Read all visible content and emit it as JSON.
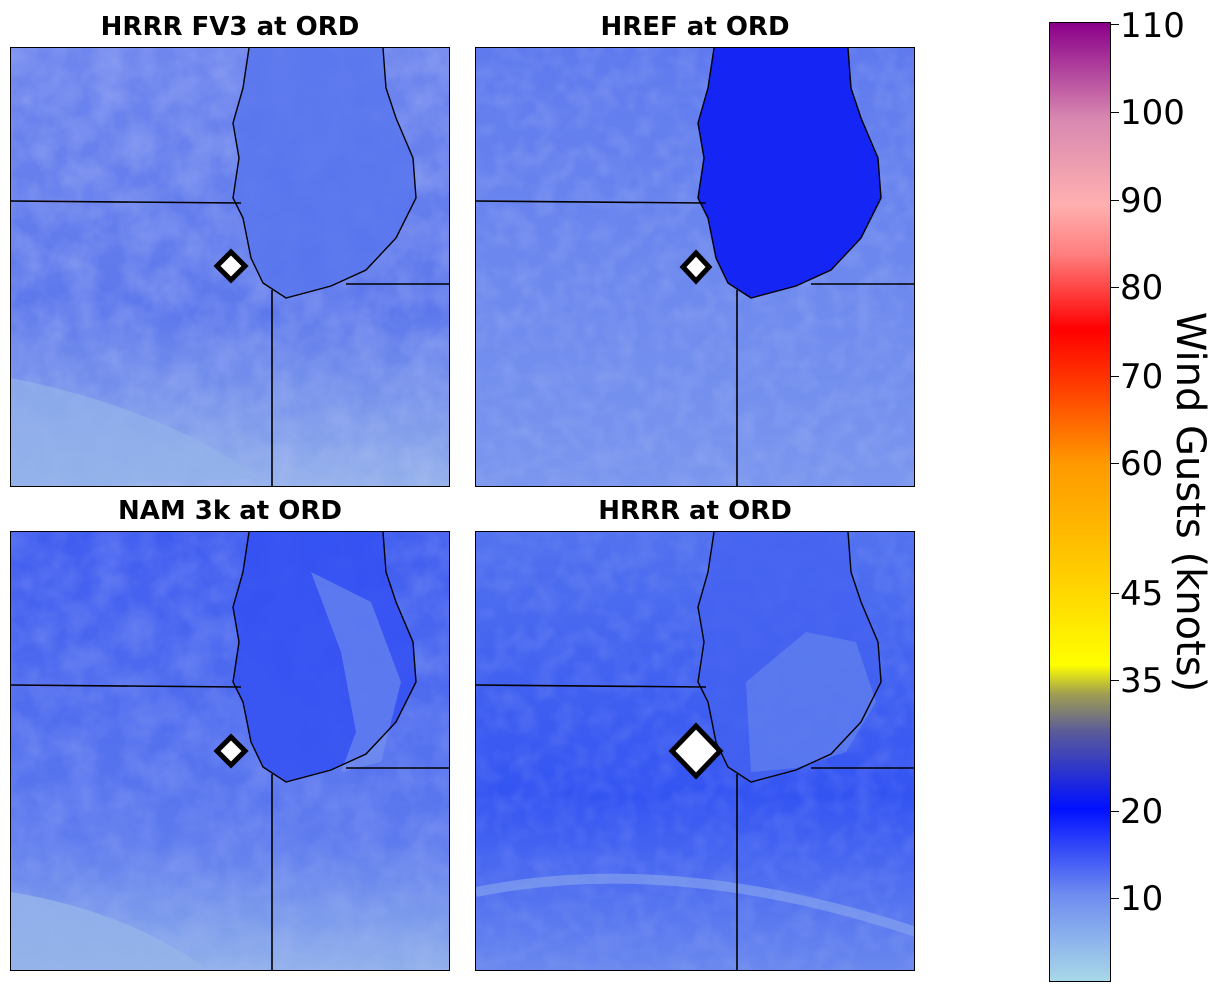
{
  "panels": [
    {
      "title": "HRRR FV3 at ORD"
    },
    {
      "title": "HREF at ORD"
    },
    {
      "title": "NAM 3k at ORD"
    },
    {
      "title": "HRRR at ORD"
    }
  ],
  "station_marker": "diamond-marker-icon",
  "colorbar": {
    "label": "Wind Gusts (knots)",
    "ticks": [
      "110",
      "100",
      "90",
      "80",
      "70",
      "60",
      "45",
      "35",
      "20",
      "10"
    ],
    "colors": {
      "low": "#a8d8e8",
      "ten": "#6f8cf0",
      "twenty": "#0010ff",
      "thirtyfive": "#ffff00",
      "forty_five": "#ffd000",
      "sixty": "#ff9900",
      "seventy": "#ff3300",
      "eighty": "#ff0000",
      "ninety": "#ffb0b0",
      "hundred": "#d888b0",
      "max": "#8a008a"
    }
  }
}
